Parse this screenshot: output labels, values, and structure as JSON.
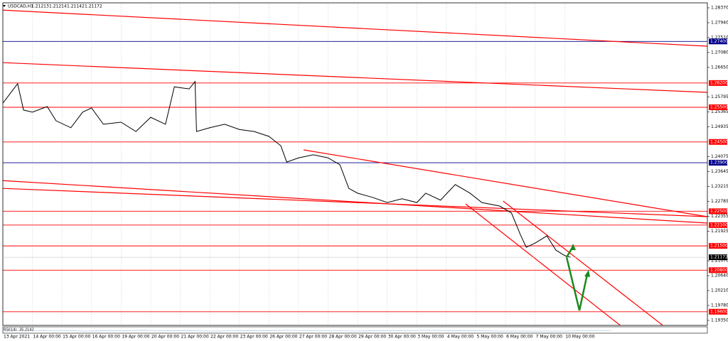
{
  "chart_data": {
    "type": "line",
    "title": "USDCAD,H1",
    "header_values": [
      1.21213,
      1.21214,
      1.21142,
      1.21172
    ],
    "indicator": "RSI(14)",
    "indicator_value": 35.2142,
    "current_price": 1.21172,
    "xlim": [
      0,
      23.85
    ],
    "xticks": [
      {
        "value": 0,
        "label": "13 Apr 2021"
      },
      {
        "value": 1,
        "label": "14 Apr 00:00"
      },
      {
        "value": 2,
        "label": "15 Apr 00:00"
      },
      {
        "value": 3,
        "label": "16 Apr 00:00"
      },
      {
        "value": 4,
        "label": "19 Apr 00:00"
      },
      {
        "value": 5,
        "label": "20 Apr 00:00"
      },
      {
        "value": 6,
        "label": "21 Apr 00:00"
      },
      {
        "value": 7,
        "label": "22 Apr 00:00"
      },
      {
        "value": 8,
        "label": "23 Apr 00:00"
      },
      {
        "value": 9,
        "label": "26 Apr 00:00"
      },
      {
        "value": 10,
        "label": "27 Apr 00:00"
      },
      {
        "value": 11,
        "label": "28 Apr 00:00"
      },
      {
        "value": 12,
        "label": "29 Apr 00:00"
      },
      {
        "value": 13,
        "label": "30 Apr 00:00"
      },
      {
        "value": 14,
        "label": "3 May 00:00"
      },
      {
        "value": 15,
        "label": "4 May 00:00"
      },
      {
        "value": 16,
        "label": "5 May 00:00"
      },
      {
        "value": 17,
        "label": "6 May 00:00"
      },
      {
        "value": 18,
        "label": "7 May 00:00"
      },
      {
        "value": 19,
        "label": "10 May 00:00"
      }
    ],
    "ylim": [
      1.1935,
      1.2837
    ],
    "yticks": [
      {
        "value": 1.2837,
        "label": "1.28370"
      },
      {
        "value": 1.2794,
        "label": "1.27940"
      },
      {
        "value": 1.2751,
        "label": "1.27510"
      },
      {
        "value": 1.2708,
        "label": "1.27080"
      },
      {
        "value": 1.2665,
        "label": "1.26650"
      },
      {
        "value": 1.25795,
        "label": "1.25795"
      },
      {
        "value": 1.25365,
        "label": "1.25365"
      },
      {
        "value": 1.24935,
        "label": "1.24935"
      },
      {
        "value": 1.24075,
        "label": "1.24075"
      },
      {
        "value": 1.23645,
        "label": "1.23645"
      },
      {
        "value": 1.23215,
        "label": "1.23215"
      },
      {
        "value": 1.22785,
        "label": "1.22785"
      },
      {
        "value": 1.22355,
        "label": "1.22355"
      },
      {
        "value": 1.21925,
        "label": "1.21925"
      },
      {
        "value": 1.2107,
        "label": "1.21070"
      },
      {
        "value": 1.2064,
        "label": "1.20640"
      },
      {
        "value": 1.2021,
        "label": "1.20210"
      },
      {
        "value": 1.1978,
        "label": "1.19780"
      },
      {
        "value": 1.1935,
        "label": "1.19350"
      }
    ],
    "series": [
      {
        "color": "#000000",
        "x": [
          0,
          0.5,
          0.7,
          1.0,
          1.5,
          1.8,
          2.3,
          2.7,
          3.0,
          3.4,
          4.0,
          4.5,
          5.0,
          5.5,
          5.8,
          6.3,
          6.5,
          6.55,
          7.0,
          7.5,
          8.0,
          8.5,
          9.0,
          9.4,
          9.6,
          10.0,
          10.5,
          11.0,
          11.4,
          11.7,
          12.0,
          12.5,
          13.0,
          13.5,
          14.0,
          14.3,
          14.8,
          15.3,
          15.8,
          16.2,
          16.8,
          17.2,
          17.5,
          17.7,
          18.0,
          18.4,
          18.7,
          19.0,
          19.2
        ],
        "values": [
          1.2562,
          1.2618,
          1.2542,
          1.2536,
          1.2552,
          1.2511,
          1.2491,
          1.2536,
          1.2548,
          1.2501,
          1.2507,
          1.248,
          1.2521,
          1.2501,
          1.2609,
          1.2603,
          1.2624,
          1.248,
          1.2491,
          1.2501,
          1.2486,
          1.248,
          1.2466,
          1.2439,
          1.2392,
          1.2404,
          1.2413,
          1.2404,
          1.2384,
          1.2316,
          1.2302,
          1.229,
          1.2275,
          1.2286,
          1.2275,
          1.2302,
          1.2282,
          1.2327,
          1.2302,
          1.2275,
          1.2265,
          1.2245,
          1.2183,
          1.2146,
          1.2158,
          1.2179,
          1.2138,
          1.2122,
          1.21172
        ]
      }
    ],
    "levels": [
      {
        "value": 1.274,
        "label": "1.27400",
        "color": "#00008b"
      },
      {
        "value": 1.262,
        "label": "1.26200",
        "color": "#ff0000"
      },
      {
        "value": 1.255,
        "label": "1.25500",
        "color": "#ff0000"
      },
      {
        "value": 1.245,
        "label": "1.24500",
        "color": "#ff0000"
      },
      {
        "value": 1.239,
        "label": "1.23900",
        "color": "#00008b"
      },
      {
        "value": 1.225,
        "label": "1.22500",
        "color": "#ff0000"
      },
      {
        "value": 1.221,
        "label": "1.22100",
        "color": "#ff0000"
      },
      {
        "value": 1.215,
        "label": "1.21500",
        "color": "#ff0000"
      },
      {
        "value": 1.208,
        "label": "1.20800",
        "color": "#ff0000"
      },
      {
        "value": 1.196,
        "label": "1.19600",
        "color": "#ff0000"
      }
    ],
    "trendlines": [
      {
        "x": [
          -0.1,
          23.82
        ],
        "y": [
          1.28308,
          1.27263
        ],
        "color": "#ff0000"
      },
      {
        "x": [
          -0.1,
          23.82
        ],
        "y": [
          1.26791,
          1.25931
        ],
        "color": "#ff0000"
      },
      {
        "x": [
          -0.1,
          23.82
        ],
        "y": [
          1.23389,
          1.22159
        ],
        "color": "#ff0000"
      },
      {
        "x": [
          -0.1,
          23.82
        ],
        "y": [
          1.23163,
          1.22343
        ],
        "color": "#ff0000"
      },
      {
        "x": [
          10.17,
          23.82
        ],
        "y": [
          1.2427,
          1.22343
        ],
        "color": "#ff0000"
      },
      {
        "x": [
          15.65,
          20.94
        ],
        "y": [
          1.22712,
          1.19165
        ],
        "color": "#ff0000"
      },
      {
        "x": [
          16.92,
          22.38
        ],
        "y": [
          1.22794,
          1.19165
        ],
        "color": "#ff0000"
      }
    ]
  }
}
